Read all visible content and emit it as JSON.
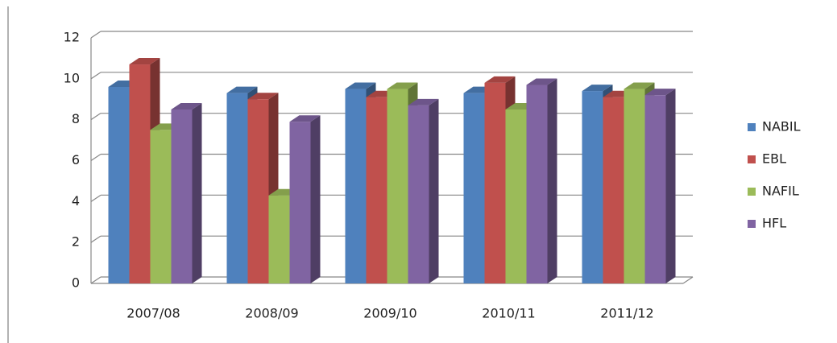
{
  "chart_data": {
    "type": "bar3d",
    "categories": [
      "2007/08",
      "2008/09",
      "2009/10",
      "2010/11",
      "2011/12"
    ],
    "series": [
      {
        "name": "NABIL",
        "color": "#4f81bd",
        "values": [
          9.6,
          9.3,
          9.5,
          9.3,
          9.4
        ]
      },
      {
        "name": "EBL",
        "color": "#c0504d",
        "values": [
          10.7,
          9.0,
          9.1,
          9.8,
          9.1
        ]
      },
      {
        "name": "NAFIL",
        "color": "#9bbb59",
        "values": [
          7.5,
          4.3,
          9.5,
          8.5,
          9.5
        ]
      },
      {
        "name": "HFL",
        "color": "#8064a2",
        "values": [
          8.5,
          7.9,
          8.7,
          9.7,
          9.2
        ]
      }
    ],
    "ylim": [
      0,
      12
    ],
    "yticks": [
      0,
      2,
      4,
      6,
      8,
      10,
      12
    ],
    "grid": true,
    "legend": "right"
  }
}
